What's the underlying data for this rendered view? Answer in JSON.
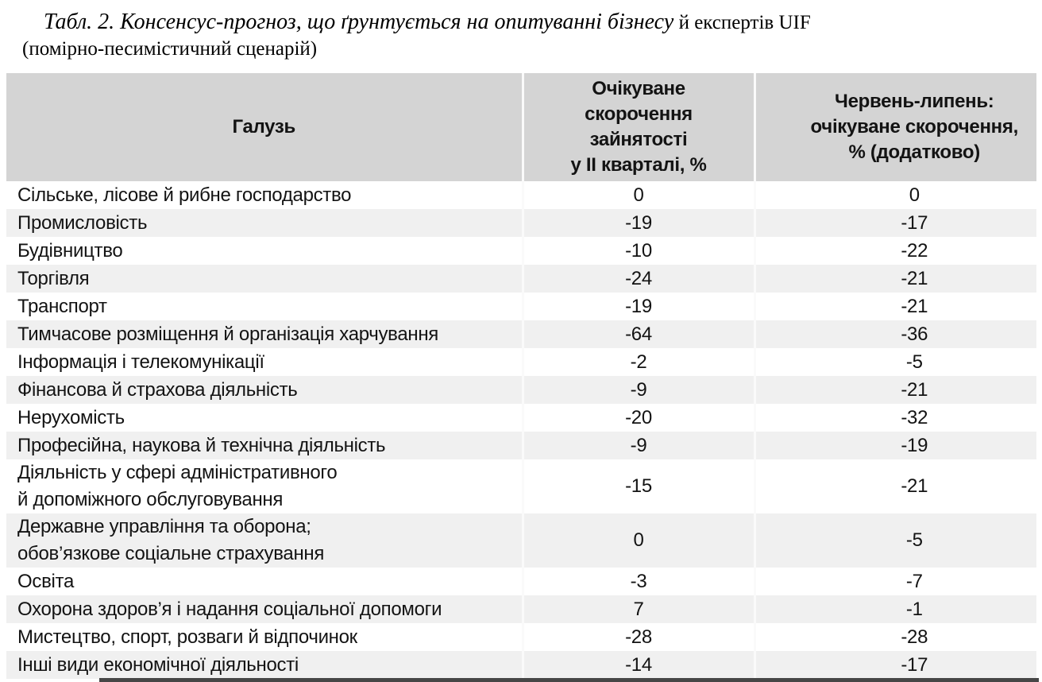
{
  "title": {
    "line1_italic": "Табл. 2. Консенсус-прогноз, що ґрунтується на опитуванні бізнесу",
    "line1_regular": " й експертів UIF",
    "line2": "(помірно-песимістичний сценарій)"
  },
  "colors": {
    "header_bg": "#d4d4d4",
    "row_bg": "#ffffff",
    "row_alt_bg": "#f0f0f0",
    "grid_line": "#fafafa",
    "text": "#131313",
    "bottom_bar": "#464646"
  },
  "table": {
    "headers": [
      "Галузь",
      "Очікуване\nскорочення\nзайнятості\nу ІІ кварталі, %",
      "Червень-липень:\nочікуване скорочення,\n% (додатково)"
    ],
    "rows": [
      {
        "industry": "Сільське, лісове й рибне господарство",
        "q2": "0",
        "jun_jul": "0"
      },
      {
        "industry": "Промисловість",
        "q2": "-19",
        "jun_jul": "-17"
      },
      {
        "industry": "Будівництво",
        "q2": "-10",
        "jun_jul": "-22"
      },
      {
        "industry": "Торгівля",
        "q2": "-24",
        "jun_jul": "-21"
      },
      {
        "industry": "Транспорт",
        "q2": "-19",
        "jun_jul": "-21"
      },
      {
        "industry": "Тимчасове розміщення й організація харчування",
        "q2": "-64",
        "jun_jul": "-36"
      },
      {
        "industry": "Інформація і телекомунікації",
        "q2": "-2",
        "jun_jul": "-5"
      },
      {
        "industry": "Фінансова й страхова діяльність",
        "q2": "-9",
        "jun_jul": "-21"
      },
      {
        "industry": "Нерухомість",
        "q2": "-20",
        "jun_jul": "-32"
      },
      {
        "industry": "Професійна, наукова й технічна діяльність",
        "q2": "-9",
        "jun_jul": "-19"
      },
      {
        "industry": "Діяльність у сфері адміністративного\nй допоміжного обслуговування",
        "q2": "-15",
        "jun_jul": "-21"
      },
      {
        "industry": "Державне управління та оборона;\nобов’язкове соціальне страхування",
        "q2": "0",
        "jun_jul": "-5"
      },
      {
        "industry": "Освіта",
        "q2": "-3",
        "jun_jul": "-7"
      },
      {
        "industry": "Охорона здоров’я і надання соціальної допомоги",
        "q2": "7",
        "jun_jul": "-1"
      },
      {
        "industry": "Мистецтво, спорт, розваги й відпочинок",
        "q2": "-28",
        "jun_jul": "-28"
      },
      {
        "industry": "Інші види економічної діяльності",
        "q2": "-14",
        "jun_jul": "-17"
      }
    ]
  }
}
